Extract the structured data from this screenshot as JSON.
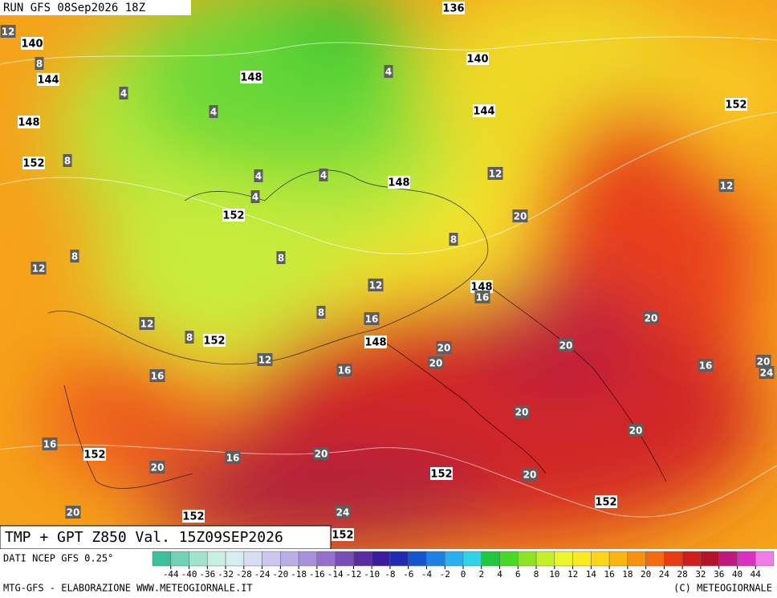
{
  "header": {
    "run": "RUN GFS 08Sep2026 18Z"
  },
  "map": {
    "gpt_labels": [
      136,
      140,
      144,
      148,
      152,
      148,
      140,
      144,
      152,
      148,
      152,
      148,
      152,
      148,
      152,
      152,
      152,
      152,
      152
    ],
    "tmp_labels": [
      12,
      8,
      4,
      4,
      4,
      8,
      4,
      4,
      4,
      12,
      12,
      20,
      8,
      12,
      8,
      8,
      12,
      16,
      8,
      12,
      16,
      8,
      20,
      20,
      20,
      12,
      16,
      20,
      16,
      16,
      20,
      24,
      20,
      20,
      16,
      20,
      16,
      20,
      20,
      20,
      24
    ]
  },
  "title": "TMP + GPT Z850 Val. 15Z09SEP2026",
  "source": "DATI NCEP GFS 0.25°",
  "colorbar": {
    "ticks": [
      -44,
      -40,
      -36,
      -32,
      -28,
      -24,
      -20,
      -18,
      -16,
      -14,
      -12,
      -10,
      -8,
      -6,
      -4,
      -2,
      0,
      2,
      4,
      6,
      8,
      10,
      12,
      14,
      16,
      18,
      20,
      24,
      28,
      32,
      36,
      40,
      44
    ],
    "colors": [
      "#3cc09c",
      "#6fd2b4",
      "#a0e2cc",
      "#c8f0e2",
      "#d6eef0",
      "#d8dcf2",
      "#cdc6ee",
      "#bcaee6",
      "#a890dc",
      "#9470cc",
      "#7a4cb8",
      "#5a2ca0",
      "#3a1c9c",
      "#1e2cb4",
      "#1454d0",
      "#1c80e4",
      "#28b0f0",
      "#30d4ea",
      "#1ec83c",
      "#48d828",
      "#8ce424",
      "#c4f028",
      "#ecf62c",
      "#fcea20",
      "#fcd418",
      "#fcb414",
      "#fa9010",
      "#f46a10",
      "#e83c14",
      "#d21c1c",
      "#b41428",
      "#c0187c",
      "#dc30c0",
      "#f07ce8"
    ]
  },
  "footer": {
    "left": "MTG-GFS - ELABORAZIONE WWW.METEOGIORNALE.IT",
    "right": "(C) METEOGIORNALE"
  }
}
